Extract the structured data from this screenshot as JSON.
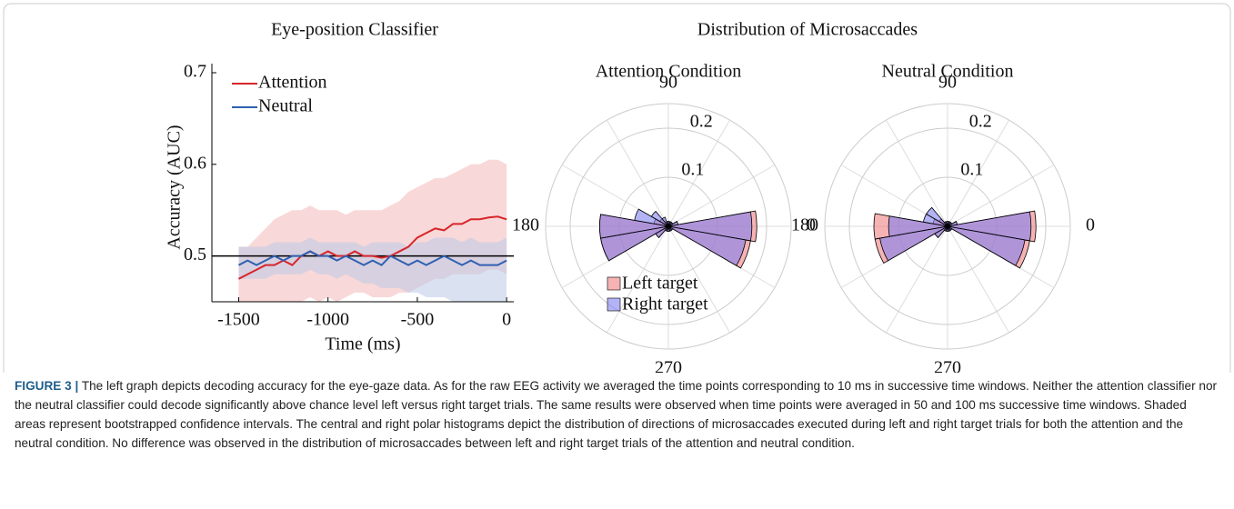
{
  "group_title": "Distribution of Microsaccades",
  "caption": {
    "label": "FIGURE 3 |",
    "text": "The left graph depicts decoding accuracy for the eye-gaze data. As for the raw EEG activity we averaged the time points corresponding to 10 ms in successive time windows. Neither the attention classifier nor the neutral classifier could decode significantly above chance level left versus right target trials. The same results were observed when time points were averaged in 50 and 100 ms successive time windows. Shaded areas represent bootstrapped confidence intervals. The central and right polar histograms depict the distribution of directions of microsaccades executed during left and right target trials for both the attention and the neutral condition. No difference was observed in the distribution of microsaccades between left and right target trials of the attention and neutral condition."
  },
  "chart_data": [
    {
      "type": "line",
      "title": "Eye-position Classifier",
      "x_label": "Time (ms)",
      "y_label": "Accuracy (AUC)",
      "x": [
        -1500,
        -1450,
        -1400,
        -1350,
        -1300,
        -1250,
        -1200,
        -1150,
        -1100,
        -1050,
        -1000,
        -950,
        -900,
        -850,
        -800,
        -750,
        -700,
        -650,
        -600,
        -550,
        -500,
        -450,
        -400,
        -350,
        -300,
        -250,
        -200,
        -150,
        -100,
        -50,
        0
      ],
      "xlim": [
        -1650,
        40
      ],
      "xticks": [
        -1500,
        -1000,
        -500,
        0
      ],
      "ylim": [
        0.45,
        0.7
      ],
      "yticks": [
        0.5,
        0.6,
        0.7
      ],
      "chance_line": 0.5,
      "legend": "upper-left",
      "series": [
        {
          "name": "Attention",
          "color": "#d7262b",
          "band_color": "#f2b8b8",
          "values": [
            0.475,
            0.48,
            0.485,
            0.49,
            0.49,
            0.495,
            0.49,
            0.5,
            0.505,
            0.5,
            0.505,
            0.5,
            0.5,
            0.505,
            0.5,
            0.5,
            0.498,
            0.5,
            0.505,
            0.51,
            0.52,
            0.525,
            0.53,
            0.528,
            0.535,
            0.535,
            0.54,
            0.54,
            0.542,
            0.543,
            0.54
          ],
          "upper": [
            0.51,
            0.51,
            0.52,
            0.53,
            0.54,
            0.545,
            0.55,
            0.55,
            0.555,
            0.55,
            0.55,
            0.55,
            0.545,
            0.55,
            0.55,
            0.55,
            0.55,
            0.555,
            0.56,
            0.57,
            0.575,
            0.58,
            0.585,
            0.585,
            0.59,
            0.595,
            0.6,
            0.6,
            0.605,
            0.605,
            0.6
          ],
          "lower": [
            0.44,
            0.44,
            0.44,
            0.445,
            0.445,
            0.45,
            0.45,
            0.45,
            0.455,
            0.45,
            0.455,
            0.45,
            0.455,
            0.46,
            0.46,
            0.455,
            0.455,
            0.455,
            0.46,
            0.46,
            0.465,
            0.47,
            0.475,
            0.475,
            0.48,
            0.48,
            0.48,
            0.48,
            0.485,
            0.485,
            0.48
          ]
        },
        {
          "name": "Neutral",
          "color": "#3060b0",
          "band_color": "#bccbe8",
          "values": [
            0.49,
            0.495,
            0.49,
            0.495,
            0.5,
            0.495,
            0.5,
            0.5,
            0.505,
            0.5,
            0.5,
            0.495,
            0.5,
            0.495,
            0.49,
            0.495,
            0.49,
            0.5,
            0.495,
            0.49,
            0.495,
            0.49,
            0.495,
            0.5,
            0.495,
            0.49,
            0.495,
            0.49,
            0.49,
            0.49,
            0.495
          ],
          "upper": [
            0.51,
            0.51,
            0.51,
            0.51,
            0.515,
            0.515,
            0.515,
            0.515,
            0.52,
            0.515,
            0.515,
            0.515,
            0.515,
            0.515,
            0.51,
            0.515,
            0.515,
            0.515,
            0.515,
            0.51,
            0.515,
            0.515,
            0.52,
            0.52,
            0.52,
            0.515,
            0.52,
            0.515,
            0.515,
            0.515,
            0.52
          ],
          "lower": [
            0.475,
            0.475,
            0.475,
            0.475,
            0.48,
            0.48,
            0.48,
            0.48,
            0.485,
            0.48,
            0.48,
            0.475,
            0.48,
            0.475,
            0.47,
            0.47,
            0.465,
            0.465,
            0.465,
            0.46,
            0.46,
            0.455,
            0.455,
            0.455,
            0.45,
            0.445,
            0.445,
            0.44,
            0.44,
            0.44,
            0.44
          ]
        }
      ]
    },
    {
      "type": "polar-histogram",
      "title": "Attention Condition",
      "bin_width": 20,
      "angles": [
        0,
        20,
        40,
        60,
        80,
        100,
        120,
        140,
        160,
        180,
        200,
        220,
        240,
        260,
        280,
        300,
        320,
        340
      ],
      "rlim": [
        0,
        0.25
      ],
      "rticks": [
        0.1,
        0.2
      ],
      "thetaticks": [
        0,
        90,
        180,
        270
      ],
      "legend": "lower-left",
      "series": [
        {
          "name": "Left target",
          "color": "#f08080",
          "values": [
            0.18,
            0.02,
            0.01,
            0.01,
            0.01,
            0.01,
            0.01,
            0.02,
            0.03,
            0.14,
            0.14,
            0.03,
            0.01,
            0.01,
            0.01,
            0.01,
            0.01,
            0.17
          ]
        },
        {
          "name": "Right target",
          "color": "#8080f0",
          "values": [
            0.17,
            0.02,
            0.01,
            0.01,
            0.01,
            0.01,
            0.02,
            0.04,
            0.07,
            0.14,
            0.14,
            0.03,
            0.01,
            0.01,
            0.01,
            0.01,
            0.01,
            0.16
          ]
        }
      ]
    },
    {
      "type": "polar-histogram",
      "title": "Neutral Condition",
      "bin_width": 20,
      "angles": [
        0,
        20,
        40,
        60,
        80,
        100,
        120,
        140,
        160,
        180,
        200,
        220,
        240,
        260,
        280,
        300,
        320,
        340
      ],
      "rlim": [
        0,
        0.25
      ],
      "rticks": [
        0.1,
        0.2
      ],
      "thetaticks": [
        0,
        90,
        180,
        270
      ],
      "series": [
        {
          "name": "Left target",
          "color": "#f08080",
          "values": [
            0.18,
            0.02,
            0.01,
            0.01,
            0.01,
            0.01,
            0.01,
            0.02,
            0.03,
            0.15,
            0.15,
            0.03,
            0.01,
            0.01,
            0.01,
            0.01,
            0.01,
            0.17
          ]
        },
        {
          "name": "Right target",
          "color": "#8080f0",
          "values": [
            0.17,
            0.02,
            0.01,
            0.01,
            0.01,
            0.01,
            0.01,
            0.05,
            0.05,
            0.12,
            0.14,
            0.03,
            0.01,
            0.01,
            0.01,
            0.01,
            0.01,
            0.16
          ]
        }
      ]
    }
  ]
}
